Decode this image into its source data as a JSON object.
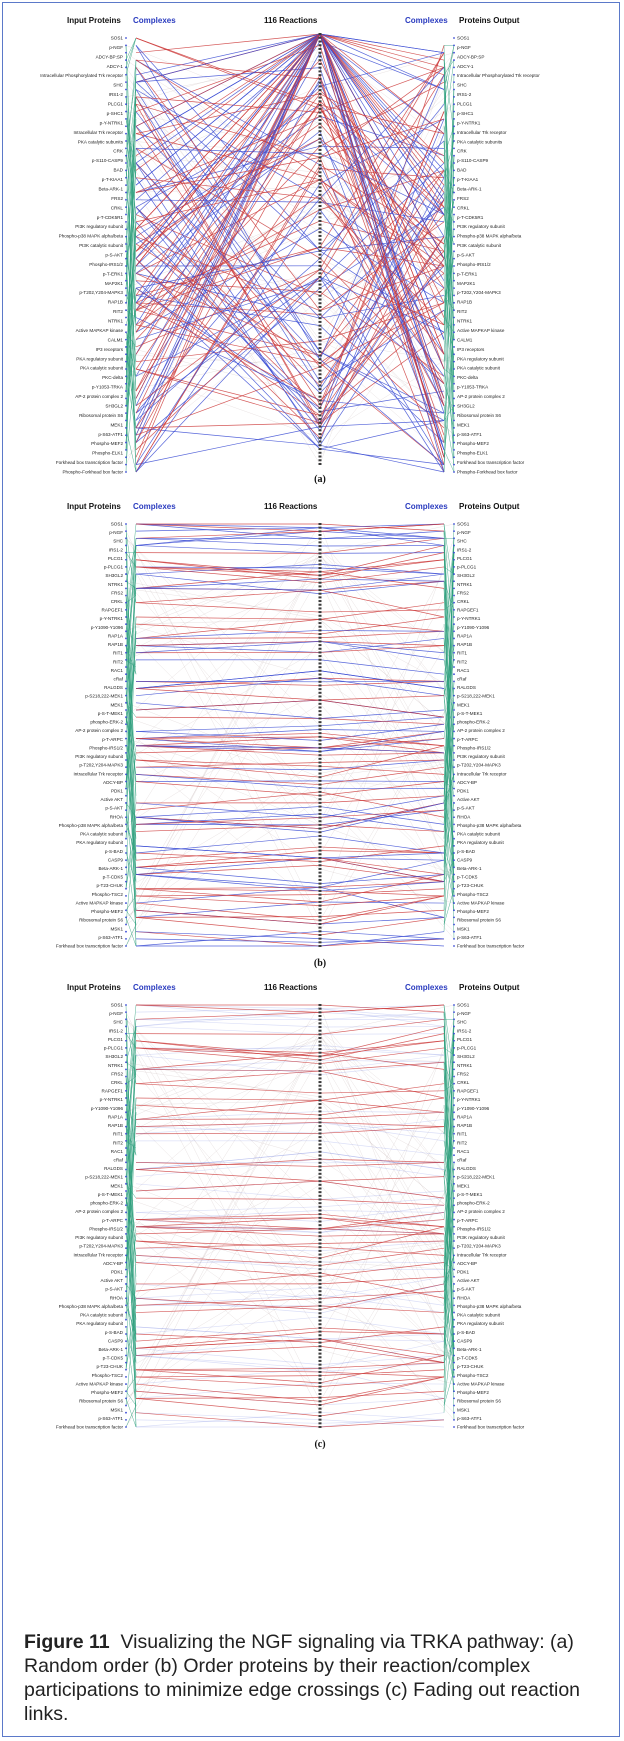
{
  "panels": [
    {
      "id": "a",
      "label": "(a)",
      "mode": "random"
    },
    {
      "id": "b",
      "label": "(b)",
      "mode": "ordered"
    },
    {
      "id": "c",
      "label": "(c)",
      "mode": "faded"
    }
  ],
  "headers": {
    "input": "Input Proteins",
    "complexes_left": "Complexes",
    "reactions": "116 Reactions",
    "complexes_right": "Complexes",
    "output": "Proteins Output"
  },
  "labels_a": [
    "SOS1",
    "p-NGF",
    "ADCY-BP:SP",
    "ADCY-1",
    "Intracellular Phosphorylated Trk receptor",
    "SHC",
    "IRS1-2",
    "PLCG1",
    "p-SHC1",
    "p-Y-NTRK1",
    "Intracellular Trk receptor",
    "PKA catalytic subunits",
    "CRK",
    "p-S110-CASP9",
    "BAD",
    "p-T-KIAA1",
    "Beta-ARK-1",
    "FRS2",
    "CRKL",
    "p-T-CDK5R1",
    "PI3K regulatory subunit",
    "Phospho-p38 MAPK alpha/beta",
    "PI3K catalytic subunit",
    "p-S-AKT",
    "Phospho-IRS1/2",
    "p-T-ERK1",
    "MAP2K1",
    "p-T202,Y204-MAPK3",
    "RAP1B",
    "RIT2",
    "NTRK1",
    "Active MAPKAP kinase",
    "CALM1",
    "IP3 receptors",
    "PKA regulatory subunit",
    "PKA catalytic subunit",
    "PKC-delta",
    "p-Y1053-TRKA",
    "AP-2 protein complex 2",
    "SH3GL2",
    "Ribosomal protein S6",
    "MEK1",
    "p-S63-ATF1",
    "Phospho-MEF2",
    "Phospho-ELK1",
    "Forkhead box transcription factor",
    "Phospho-Forkhead box factor"
  ],
  "labels_b": [
    "SOS1",
    "p-NGF",
    "SHC",
    "IRS1-2",
    "PLCG1",
    "p-PLCG1",
    "SH3GL2",
    "NTRK1",
    "FRS2",
    "CRKL",
    "RAPGEF1",
    "p-Y-NTRK1",
    "p-Y1090-Y1096",
    "RAP1A",
    "RAP1B",
    "RIT1",
    "RIT2",
    "RAC1",
    "cRaf",
    "RALGDS",
    "p-S218,222-MEK1",
    "MEK1",
    "p-S-T-MEK1",
    "phospho-ERK-2",
    "AP-2 protein complex 2",
    "p-T-ARPC",
    "Phospho-IRS1/2",
    "PI3K regulatory subunit",
    "p-T202,Y204-MAPK3",
    "Intracellular Trk receptor",
    "ADCY-BP",
    "PDK1",
    "Active AKT",
    "p-S-AKT",
    "RHOA",
    "Phospho-p38 MAPK alpha/beta",
    "PKA catalytic subunit",
    "PKA regulatory subunit",
    "p-S-BAD",
    "CASP9",
    "Beta-ARK-1",
    "p-T-CDK5",
    "p-T23-CHUK",
    "Phospho-TSC2",
    "Active MAPKAP kinase",
    "Phospho-MEF2",
    "Ribosomal protein S6",
    "MSK1",
    "p-S63-ATF1",
    "Forkhead box transcription factor"
  ],
  "caption": {
    "label": "Figure 11",
    "text": "Visualizing the NGF signaling via TRKA pathway: (a) Random order (b) Order proteins by their reaction/complex participations to minimize edge crossings (c) Fading out reaction links."
  },
  "colors": {
    "red": "#cc3a3a",
    "blue": "#3a4bd4",
    "green": "#2a9e7a",
    "node": "#3a3a3a",
    "border": "#5b79c9",
    "complexes": "#2a3bbf"
  }
}
